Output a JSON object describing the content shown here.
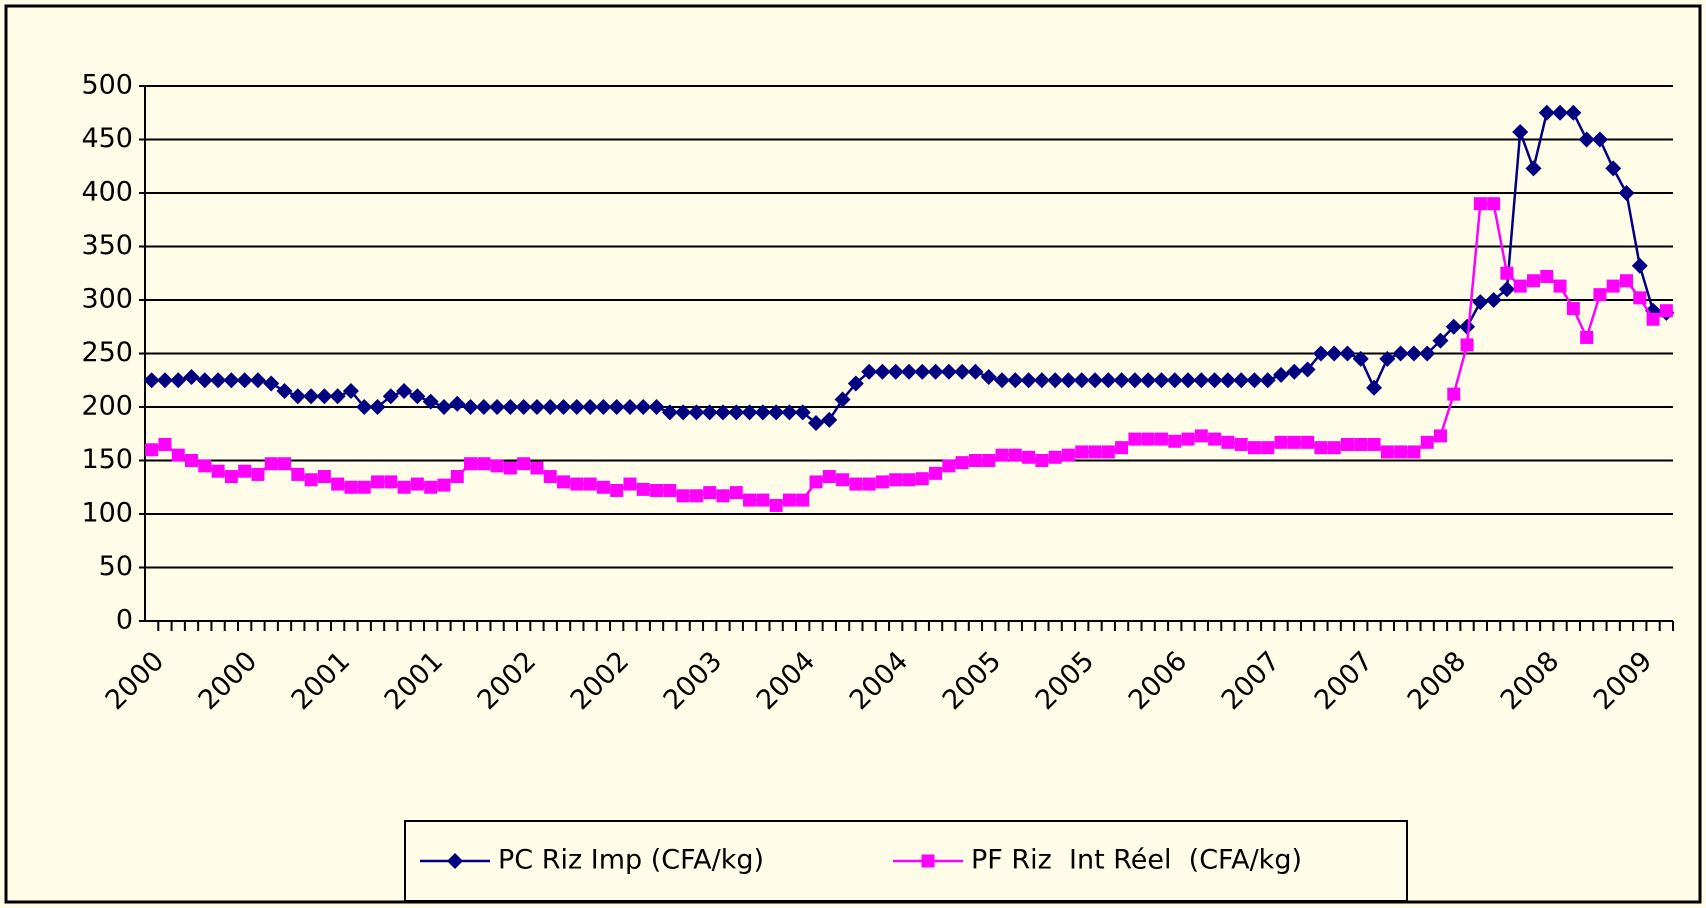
{
  "chart_data": {
    "type": "line",
    "categories": [
      "2000",
      null,
      null,
      null,
      null,
      null,
      null,
      "2000",
      null,
      null,
      null,
      null,
      null,
      null,
      "2001",
      null,
      null,
      null,
      null,
      null,
      null,
      "2001",
      null,
      null,
      null,
      null,
      null,
      null,
      "2002",
      null,
      null,
      null,
      null,
      null,
      null,
      "2002",
      null,
      null,
      null,
      null,
      null,
      null,
      "2003",
      null,
      null,
      null,
      null,
      null,
      null,
      "2004",
      null,
      null,
      null,
      null,
      null,
      null,
      "2004",
      null,
      null,
      null,
      null,
      null,
      null,
      "2005",
      null,
      null,
      null,
      null,
      null,
      null,
      "2005",
      null,
      null,
      null,
      null,
      null,
      null,
      "2006",
      null,
      null,
      null,
      null,
      null,
      null,
      "2007",
      null,
      null,
      null,
      null,
      null,
      null,
      "2007",
      null,
      null,
      null,
      null,
      null,
      null,
      "2008",
      null,
      null,
      null,
      null,
      null,
      null,
      "2008",
      null,
      null,
      null,
      null,
      null,
      null,
      "2009",
      null,
      null
    ],
    "series": [
      {
        "name": "PC Riz Imp (CFA/kg)",
        "color": "#000080",
        "marker": "diamond",
        "values": [
          225,
          225,
          225,
          228,
          225,
          225,
          225,
          225,
          225,
          222,
          215,
          210,
          210,
          210,
          210,
          215,
          200,
          200,
          210,
          215,
          210,
          205,
          200,
          203,
          200,
          200,
          200,
          200,
          200,
          200,
          200,
          200,
          200,
          200,
          200,
          200,
          200,
          200,
          200,
          195,
          195,
          195,
          195,
          195,
          195,
          195,
          195,
          195,
          195,
          195,
          185,
          188,
          207,
          222,
          233,
          233,
          233,
          233,
          233,
          233,
          233,
          233,
          233,
          228,
          225,
          225,
          225,
          225,
          225,
          225,
          225,
          225,
          225,
          225,
          225,
          225,
          225,
          225,
          225,
          225,
          225,
          225,
          225,
          225,
          225,
          230,
          233,
          235,
          250,
          250,
          250,
          245,
          218,
          245,
          250,
          250,
          250,
          262,
          275,
          275,
          298,
          300,
          310,
          457,
          423,
          475,
          475,
          475,
          450,
          450,
          423,
          400,
          332,
          290,
          288
        ]
      },
      {
        "name": "PF Riz  Int Réel  (CFA/kg)",
        "color": "#ff00ff",
        "marker": "square",
        "values": [
          160,
          165,
          155,
          150,
          145,
          140,
          135,
          140,
          137,
          147,
          147,
          137,
          132,
          135,
          128,
          125,
          125,
          130,
          130,
          125,
          128,
          125,
          127,
          135,
          147,
          147,
          145,
          143,
          147,
          143,
          135,
          130,
          128,
          128,
          125,
          122,
          128,
          123,
          122,
          122,
          117,
          117,
          120,
          117,
          120,
          113,
          113,
          108,
          113,
          113,
          130,
          135,
          132,
          128,
          128,
          130,
          132,
          132,
          133,
          138,
          145,
          148,
          150,
          150,
          155,
          155,
          153,
          150,
          153,
          155,
          158,
          158,
          158,
          162,
          170,
          170,
          170,
          168,
          170,
          173,
          170,
          167,
          165,
          162,
          162,
          167,
          167,
          167,
          162,
          162,
          165,
          165,
          165,
          158,
          158,
          158,
          167,
          173,
          212,
          258,
          390,
          390,
          325,
          313,
          318,
          322,
          313,
          292,
          265,
          305,
          313,
          318,
          302,
          282,
          290
        ]
      }
    ],
    "ylim": [
      0,
      500
    ],
    "yticks": [
      0,
      50,
      100,
      150,
      200,
      250,
      300,
      350,
      400,
      450,
      500
    ],
    "grid": true,
    "legend": "bottom"
  }
}
